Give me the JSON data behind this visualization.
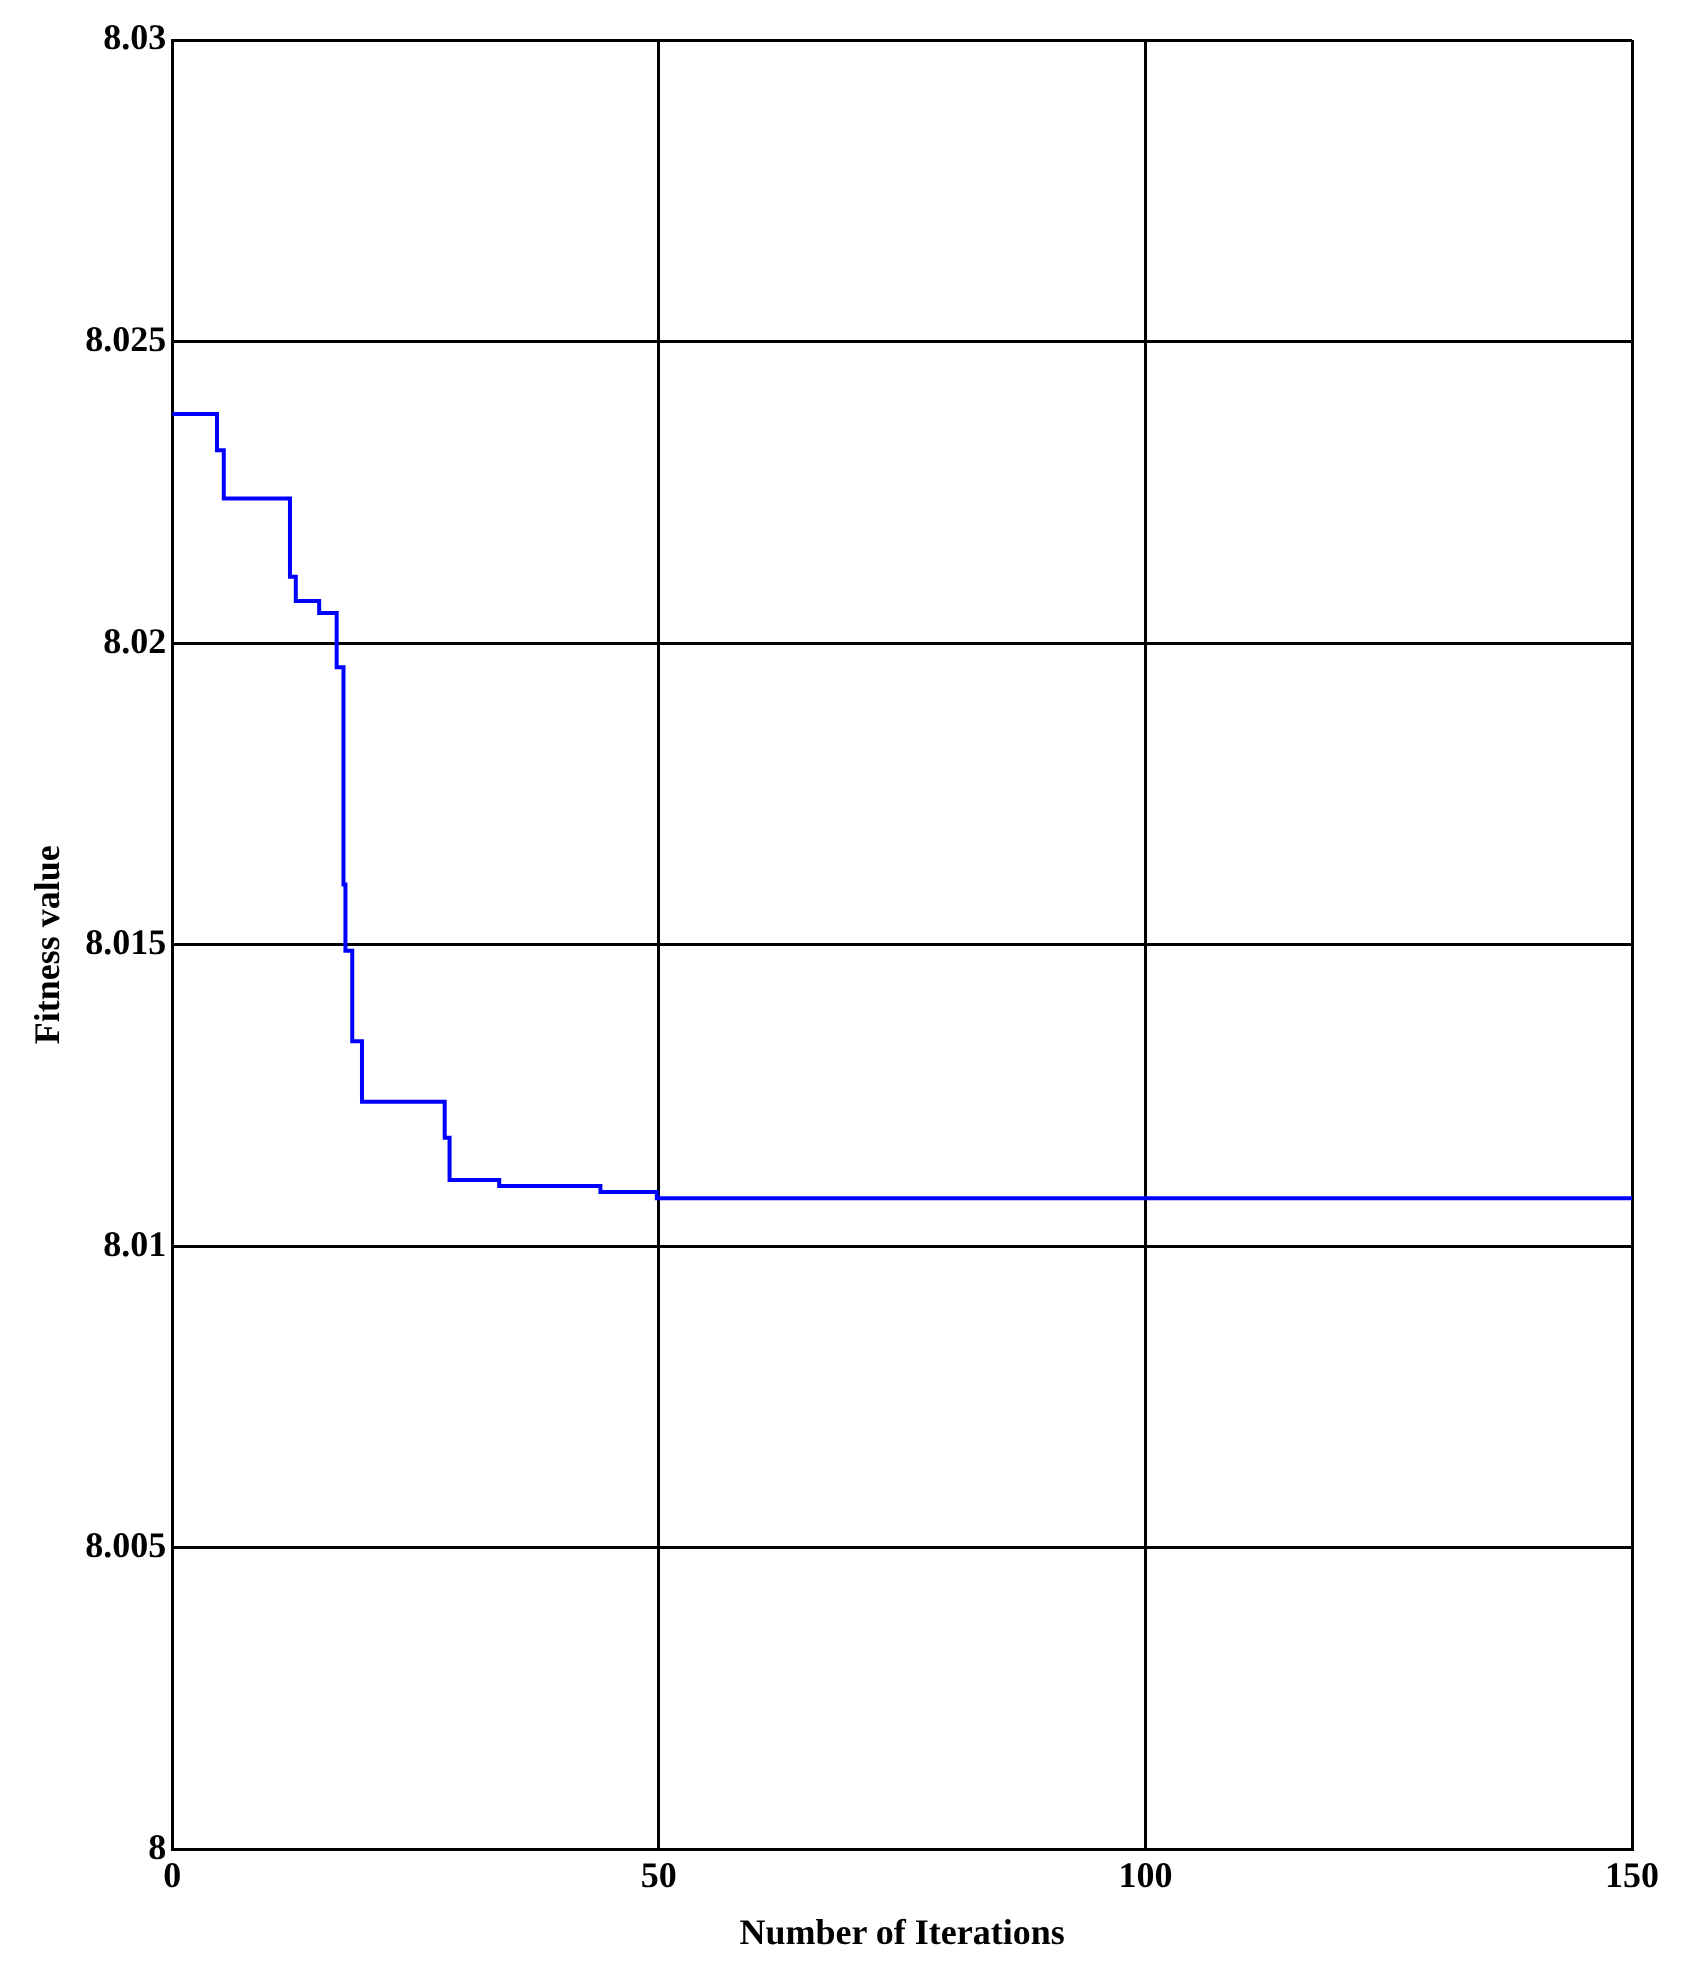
{
  "chart_data": {
    "type": "step",
    "xlabel": "Number of Iterations",
    "ylabel": "Fitness value",
    "x": [
      0,
      4.6,
      5.3,
      12.1,
      12.7,
      15.1,
      16.9,
      17.6,
      17.8,
      18.5,
      19.5,
      28,
      28.5,
      33.6,
      44,
      49.8,
      71.4,
      150
    ],
    "series": [
      {
        "color": "#0000ff",
        "values": [
          8.0238,
          8.0232,
          8.0224,
          8.0211,
          8.0207,
          8.0205,
          8.0196,
          8.016,
          8.0149,
          8.0134,
          8.0124,
          8.0118,
          8.0111,
          8.011,
          8.0109,
          8.0108,
          8.0108,
          8.0108
        ]
      }
    ],
    "xlim": [
      0,
      150
    ],
    "xticks": [
      0,
      50,
      100,
      150
    ],
    "ylim": [
      8,
      8.03
    ],
    "yticks": [
      8,
      8.005,
      8.01,
      8.015,
      8.02,
      8.025,
      8.03
    ],
    "grid": true,
    "legend": false
  }
}
